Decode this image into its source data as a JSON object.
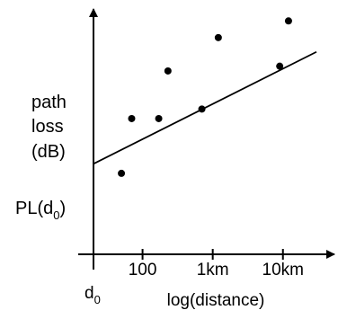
{
  "chart_data": {
    "type": "scatter",
    "xscale": "log",
    "x_unit": "m",
    "xlim": [
      20,
      30000
    ],
    "ylim": [
      0,
      100
    ],
    "y_ticks": "none",
    "grid": false,
    "legend": "none",
    "xlabel": "log(distance)",
    "ylabel_lines": [
      "path",
      "loss",
      "(dB)"
    ],
    "x_ticks": [
      {
        "value": 100,
        "label": "100"
      },
      {
        "value": 1000,
        "label": "1km"
      },
      {
        "value": 10000,
        "label": "10km"
      }
    ],
    "origin_label": {
      "base": "d",
      "sub": "0"
    },
    "intercept_label": {
      "base": "PL(d",
      "sub": "0",
      "tail": ")"
    },
    "fit_line": {
      "type": "linear-in-log-x",
      "x": [
        20,
        30000
      ],
      "y": [
        38,
        85
      ]
    },
    "points": [
      {
        "x": 50,
        "y": 34
      },
      {
        "x": 70,
        "y": 57
      },
      {
        "x": 170,
        "y": 57
      },
      {
        "x": 230,
        "y": 77
      },
      {
        "x": 1200,
        "y": 91
      },
      {
        "x": 9000,
        "y": 79
      },
      {
        "x": 12000,
        "y": 98
      },
      {
        "x": 700,
        "y": 61
      }
    ],
    "colors": {
      "ink": "#000000",
      "background": "#ffffff"
    }
  }
}
